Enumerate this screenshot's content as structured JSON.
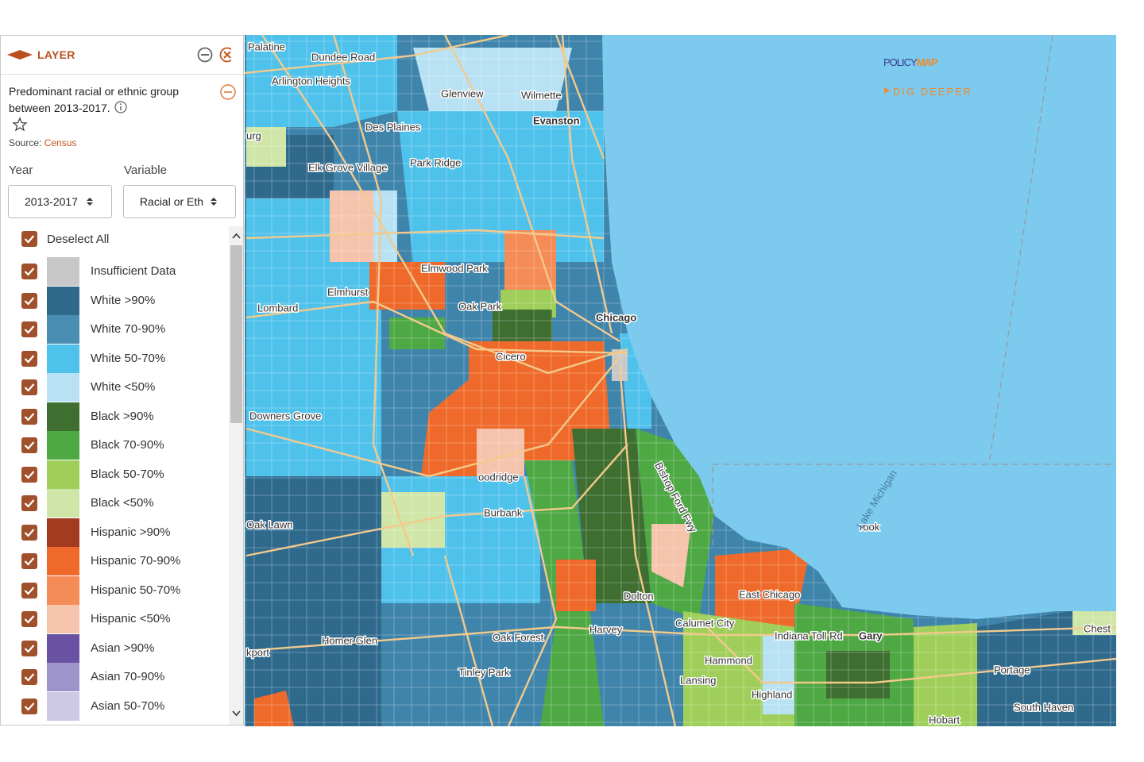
{
  "panel": {
    "header": "LAYER",
    "description": "Predominant racial or ethnic group between 2013-2017.",
    "source_label": "Source:",
    "source_link": "Census",
    "year_label": "Year",
    "variable_label": "Variable",
    "year_value": "2013-2017",
    "variable_value": "Racial or Eth",
    "deselect_all": "Deselect All",
    "legend": [
      {
        "label": "Insufficient Data",
        "color": "#c8c8c8"
      },
      {
        "label": "White >90%",
        "color": "#2f6a8d"
      },
      {
        "label": "White 70-90%",
        "color": "#4a8fb3"
      },
      {
        "label": "White 50-70%",
        "color": "#4fc2ec"
      },
      {
        "label": "White <50%",
        "color": "#b8e2f4"
      },
      {
        "label": "Black >90%",
        "color": "#3f6e31"
      },
      {
        "label": "Black 70-90%",
        "color": "#4ea844"
      },
      {
        "label": "Black 50-70%",
        "color": "#9fcf5a"
      },
      {
        "label": "Black <50%",
        "color": "#cfe6a8"
      },
      {
        "label": "Hispanic >90%",
        "color": "#a23b20"
      },
      {
        "label": "Hispanic 70-90%",
        "color": "#ef6a2a"
      },
      {
        "label": "Hispanic 50-70%",
        "color": "#f58b56"
      },
      {
        "label": "Hispanic <50%",
        "color": "#f6c3ad"
      },
      {
        "label": "Asian >90%",
        "color": "#6a52a3"
      },
      {
        "label": "Asian 70-90%",
        "color": "#9e94cc"
      },
      {
        "label": "Asian 50-70%",
        "color": "#cdc8e5"
      }
    ]
  },
  "map": {
    "logo": {
      "policy": "POLICY",
      "map": "MAP",
      "tagline": "DIG DEEPER"
    },
    "places": [
      "Palatine",
      "Dundee Road",
      "Arlington Heights",
      "Glenview",
      "Wilmette",
      "Evanston",
      "Des Plaines",
      "urg",
      "Elk Grove Village",
      "Park Ridge",
      "Elmwood Park",
      "Elmhurst",
      "Oak Park",
      "Lombard",
      "Chicago",
      "Cicero",
      "Downers Grove",
      "oodridge",
      "Burbank",
      "Bishop Ford Fwy",
      "Oak Lawn",
      "rook",
      "Lake Michigan",
      "Dolton",
      "East Chicago",
      "Harvey",
      "Calumet City",
      "Indiana Toll Rd",
      "Gary",
      "Chest",
      "Oak Forest",
      "Homer Glen",
      "kport",
      "Hammond",
      "Tinley Park",
      "Lansing",
      "Portage",
      "Highland",
      "South Haven",
      "Hobart"
    ]
  }
}
